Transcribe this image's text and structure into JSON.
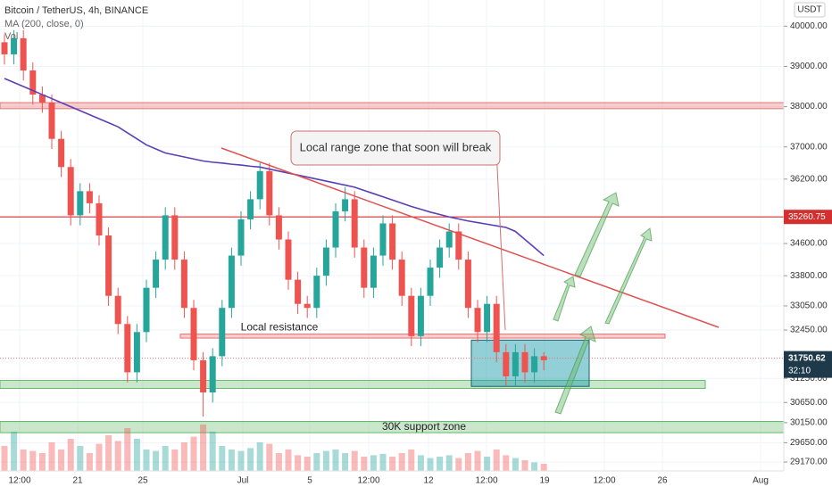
{
  "chart_data": {
    "type": "candlestick",
    "title": "Bitcoin / TetherUS, 4h, BINANCE",
    "indicator": "MA (200, close, 0)",
    "volume_label": "Vol",
    "currency": "USDT",
    "open": [
      39600,
      39300,
      39700,
      38900,
      38300,
      38100,
      37200,
      36500,
      35300,
      35900,
      35600,
      34800,
      33300,
      32600,
      31400,
      32400,
      33500,
      34200,
      35300,
      34200,
      33000,
      31700,
      30900,
      31800,
      33000,
      34300,
      35200,
      35700,
      36400,
      35300,
      34700,
      33700,
      33100,
      33000,
      33800,
      34500,
      35400,
      35700,
      34500,
      33500,
      34300,
      35100,
      34200,
      33300,
      32300,
      33300,
      34000,
      34500,
      34900,
      34200,
      33000,
      32400,
      33100,
      31900,
      31300,
      31900,
      31400,
      31800
    ],
    "high": [
      39800,
      39900,
      39900,
      39100,
      38500,
      38300,
      37400,
      36700,
      36100,
      36100,
      35800,
      35000,
      33500,
      32800,
      32600,
      33700,
      34400,
      35500,
      35500,
      34400,
      33200,
      31900,
      32000,
      33200,
      34500,
      35400,
      35900,
      36600,
      36600,
      35500,
      34900,
      33900,
      33300,
      34000,
      34700,
      35600,
      36000,
      35900,
      34700,
      34500,
      35300,
      35300,
      34400,
      33500,
      33500,
      34200,
      34700,
      35100,
      35100,
      34400,
      33200,
      33300,
      33300,
      32100,
      32100,
      32100,
      32000,
      31900
    ],
    "low": [
      39050,
      39050,
      38650,
      38050,
      37850,
      36950,
      36250,
      35050,
      35050,
      35350,
      34550,
      33050,
      32350,
      31150,
      31150,
      32150,
      33250,
      33950,
      33950,
      32750,
      31450,
      30300,
      30650,
      31550,
      32750,
      34050,
      34950,
      35450,
      35050,
      34450,
      33450,
      32850,
      32750,
      32750,
      33550,
      34250,
      35150,
      34250,
      33250,
      33250,
      34050,
      33950,
      33050,
      32050,
      32050,
      33050,
      33750,
      34250,
      33950,
      32750,
      32150,
      32150,
      31650,
      31050,
      31050,
      31150,
      31150,
      31450
    ],
    "close": [
      39300,
      39700,
      38900,
      38300,
      38100,
      37200,
      36500,
      35300,
      35900,
      35600,
      34800,
      33300,
      32600,
      31400,
      32400,
      33500,
      34200,
      35300,
      34200,
      33000,
      31700,
      30900,
      31800,
      33000,
      34300,
      35200,
      35700,
      36400,
      35300,
      34700,
      33700,
      33100,
      33000,
      33800,
      34500,
      35400,
      35700,
      34500,
      33500,
      34300,
      35100,
      34200,
      33300,
      32300,
      33300,
      34000,
      34500,
      34900,
      34200,
      33000,
      32400,
      33100,
      31900,
      31300,
      31900,
      31400,
      31800,
      31700
    ],
    "volume": [
      35,
      55,
      30,
      28,
      25,
      40,
      30,
      45,
      35,
      25,
      38,
      50,
      42,
      60,
      45,
      30,
      28,
      35,
      30,
      40,
      48,
      65,
      55,
      35,
      30,
      28,
      32,
      40,
      38,
      25,
      30,
      22,
      20,
      25,
      28,
      30,
      25,
      28,
      20,
      22,
      24,
      20,
      25,
      30,
      22,
      18,
      20,
      22,
      18,
      25,
      28,
      20,
      30,
      22,
      18,
      15,
      12,
      10
    ],
    "ma": [
      38700,
      38600,
      38500,
      38400,
      38300,
      38200,
      38100,
      38000,
      37900,
      37800,
      37700,
      37600,
      37500,
      37350,
      37200,
      37050,
      36950,
      36850,
      36800,
      36750,
      36700,
      36650,
      36620,
      36600,
      36570,
      36550,
      36520,
      36500,
      36450,
      36400,
      36350,
      36300,
      36250,
      36200,
      36150,
      36100,
      36050,
      36000,
      35920,
      35840,
      35760,
      35680,
      35600,
      35520,
      35450,
      35380,
      35320,
      35260,
      35210,
      35160,
      35120,
      35080,
      35040,
      35000,
      34900,
      34700,
      34500,
      34300
    ],
    "up_color": "#26a69a",
    "down_color": "#ef5350",
    "ma_color": "#5b3fb5",
    "ylim": [
      28950,
      40650
    ],
    "yticks": [
      {
        "value": 40000,
        "label": "40000.00"
      },
      {
        "value": 39000,
        "label": "39000.00"
      },
      {
        "value": 38000,
        "label": "38000.00"
      },
      {
        "value": 37000,
        "label": "37000.00"
      },
      {
        "value": 36200,
        "label": "36200.00"
      },
      {
        "value": 34600,
        "label": "34600.00"
      },
      {
        "value": 33800,
        "label": "33800.00"
      },
      {
        "value": 33050,
        "label": "33050.00"
      },
      {
        "value": 32450,
        "label": "32450.00"
      },
      {
        "value": 31250,
        "label": "31250.00"
      },
      {
        "value": 30650,
        "label": "30650.00"
      },
      {
        "value": 30150,
        "label": "30150.00"
      },
      {
        "value": 29650,
        "label": "29650.00"
      },
      {
        "value": 29170,
        "label": "29170.00"
      }
    ],
    "x_labels": [
      "12:00",
      "21",
      "25",
      "Jul",
      "5",
      "12:00",
      "12",
      "12:00",
      "19",
      "12:00",
      "26",
      "Aug"
    ],
    "marked_level": 35260.75,
    "last_price": 31750.62,
    "countdown": "32:10",
    "zones": [
      {
        "low": 37950,
        "high": 38100,
        "color": "#e57373"
      },
      {
        "low": 31000,
        "high": 31200,
        "color": "#66bb6a"
      },
      {
        "low": 29900,
        "high": 30180,
        "color": "#66bb6a",
        "label": "30K support zone"
      },
      {
        "low": 32250,
        "high": 32350,
        "color": "#e57373",
        "label": "Local resistance"
      },
      {
        "low": 31050,
        "high": 32200,
        "color": "#26a0b0"
      }
    ],
    "callout": "Local range zone that soon will break"
  }
}
